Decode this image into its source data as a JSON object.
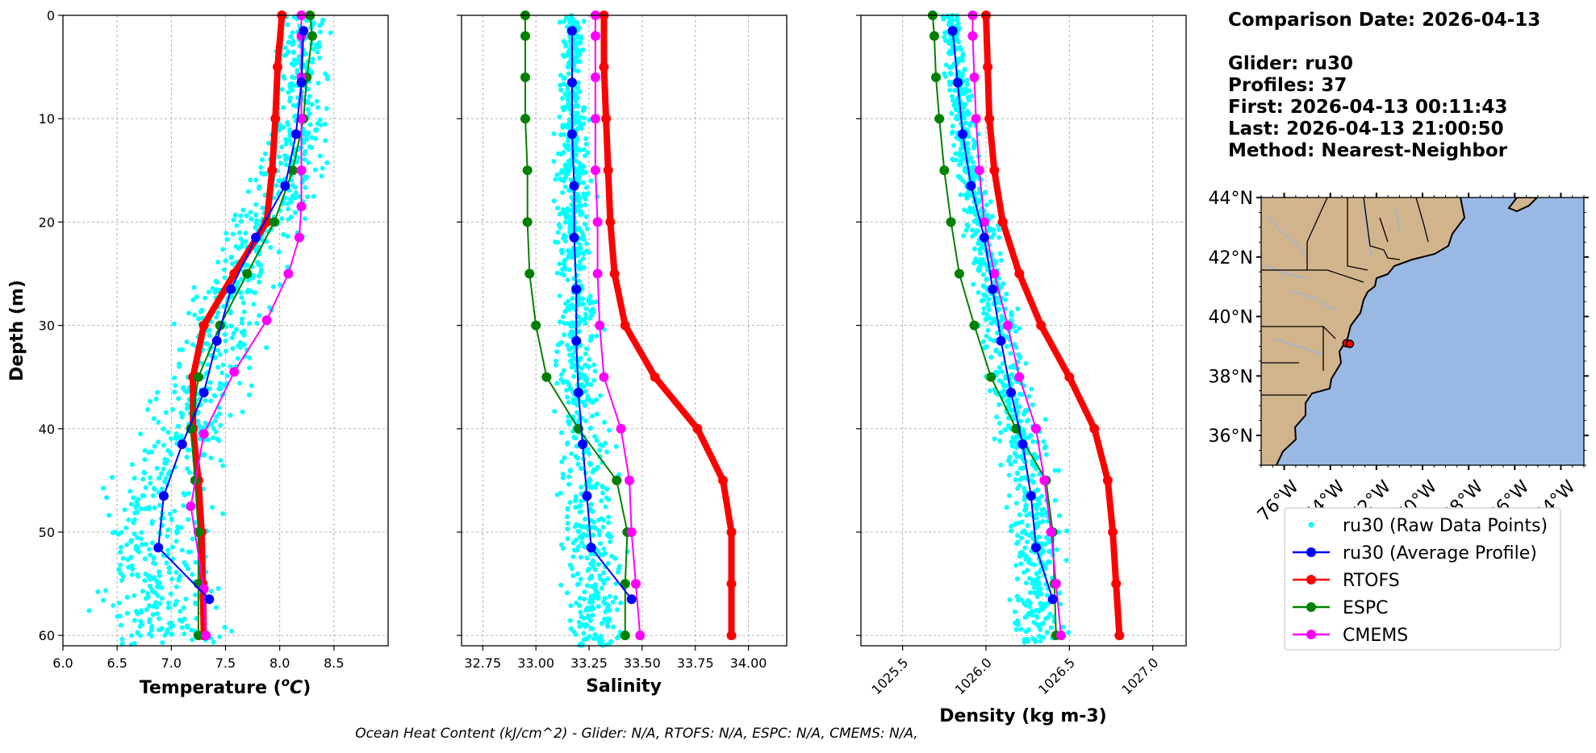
{
  "info": {
    "comparison_date": "Comparison Date: 2026-04-13",
    "glider": "Glider: ru30",
    "profiles": "Profiles: 37",
    "first": "First: 2026-04-13 00:11:43",
    "last": "Last: 2026-04-13 21:00:50",
    "method": "Method: Nearest-Neighbor"
  },
  "footer": "Ocean Heat Content (kJ/cm^2) - Glider: N/A,  RTOFS: N/A,  ESPC: N/A,  CMEMS: N/A,",
  "colors": {
    "raw": "#00ffff",
    "glider_avg": "#0000ff",
    "rtofs": "#ff0000",
    "espc": "#008000",
    "cmems": "#ff00ff",
    "land": "#d2b48c",
    "ocean": "#9ab8e4",
    "rivers": "#9bb3d4"
  },
  "chart_data": [
    {
      "type": "line",
      "xlabel": "Temperature (°C)",
      "ylabel": "Depth (m)",
      "xlim": [
        6.0,
        9.0
      ],
      "ylim": [
        61,
        0
      ],
      "xticks": [
        "6.0",
        "6.5",
        "7.0",
        "7.5",
        "8.0",
        "8.5"
      ],
      "yticks": [
        "0",
        "10",
        "20",
        "30",
        "40",
        "50",
        "60"
      ],
      "grid": true,
      "y_inverted": true,
      "depth": [
        1.5,
        6.5,
        11.5,
        16.5,
        21.5,
        26.5,
        31.5,
        36.5,
        41.5,
        46.5,
        51.5,
        56.5
      ],
      "series": [
        {
          "name": "ru30 (Average Profile)",
          "values": [
            8.22,
            8.2,
            8.15,
            8.05,
            7.78,
            7.55,
            7.42,
            7.3,
            7.1,
            6.93,
            6.88,
            7.35
          ]
        },
        {
          "name": "RTOFS",
          "depth": [
            0,
            5,
            10,
            15,
            20,
            25,
            30,
            35,
            40,
            45,
            50,
            55,
            60
          ],
          "values": [
            8.02,
            7.98,
            7.96,
            7.93,
            7.88,
            7.58,
            7.3,
            7.2,
            7.2,
            7.25,
            7.28,
            7.29,
            7.3
          ]
        },
        {
          "name": "ESPC",
          "depth": [
            0,
            2,
            6,
            10,
            15,
            20,
            25,
            30,
            35,
            40,
            45,
            50,
            55,
            60
          ],
          "values": [
            8.28,
            8.3,
            8.25,
            8.22,
            8.12,
            7.95,
            7.7,
            7.45,
            7.25,
            7.18,
            7.22,
            7.25,
            7.25,
            7.25
          ]
        },
        {
          "name": "CMEMS",
          "depth": [
            0,
            2,
            6,
            10,
            15,
            18.5,
            21.5,
            25,
            29.5,
            34.5,
            40.5,
            47.5,
            55.5,
            60
          ],
          "values": [
            8.2,
            8.2,
            8.2,
            8.2,
            8.2,
            8.2,
            8.18,
            8.08,
            7.88,
            7.58,
            7.3,
            7.18,
            7.3,
            7.32
          ]
        }
      ]
    },
    {
      "type": "line",
      "xlabel": "Salinity",
      "xlim": [
        32.65,
        34.18
      ],
      "ylim": [
        61,
        0
      ],
      "xticks": [
        "32.75",
        "33.00",
        "33.25",
        "33.50",
        "33.75",
        "34.00"
      ],
      "grid": true,
      "y_inverted": true,
      "depth": [
        1.5,
        6.5,
        11.5,
        16.5,
        21.5,
        26.5,
        31.5,
        36.5,
        41.5,
        46.5,
        51.5,
        56.5
      ],
      "series": [
        {
          "name": "ru30 (Average Profile)",
          "values": [
            33.17,
            33.17,
            33.17,
            33.18,
            33.18,
            33.19,
            33.19,
            33.2,
            33.22,
            33.24,
            33.26,
            33.45
          ]
        },
        {
          "name": "RTOFS",
          "depth": [
            0,
            5,
            10,
            15,
            20,
            25,
            30,
            35,
            40,
            45,
            50,
            55,
            60
          ],
          "values": [
            33.32,
            33.32,
            33.33,
            33.34,
            33.35,
            33.37,
            33.42,
            33.56,
            33.76,
            33.88,
            33.92,
            33.92,
            33.92
          ]
        },
        {
          "name": "ESPC",
          "depth": [
            0,
            2,
            6,
            10,
            15,
            20,
            25,
            30,
            35,
            40,
            45,
            50,
            55,
            60
          ],
          "values": [
            32.95,
            32.95,
            32.95,
            32.95,
            32.96,
            32.96,
            32.97,
            33.0,
            33.05,
            33.2,
            33.38,
            33.43,
            33.42,
            33.42
          ]
        },
        {
          "name": "CMEMS",
          "depth": [
            0,
            2,
            6,
            10,
            15,
            20,
            25,
            30,
            35,
            40,
            45,
            50,
            55,
            60
          ],
          "values": [
            33.28,
            33.28,
            33.28,
            33.28,
            33.28,
            33.29,
            33.29,
            33.3,
            33.32,
            33.4,
            33.44,
            33.45,
            33.47,
            33.49
          ]
        }
      ]
    },
    {
      "type": "line",
      "xlabel": "Density (kg m-3)",
      "xlim": [
        1025.25,
        1027.2
      ],
      "ylim": [
        61,
        0
      ],
      "xticks": [
        "1025.5",
        "1026.0",
        "1026.5",
        "1027.0"
      ],
      "grid": true,
      "y_inverted": true,
      "depth": [
        1.5,
        6.5,
        11.5,
        16.5,
        21.5,
        26.5,
        31.5,
        36.5,
        41.5,
        46.5,
        51.5,
        56.5
      ],
      "series": [
        {
          "name": "ru30 (Average Profile)",
          "values": [
            1025.8,
            1025.83,
            1025.86,
            1025.91,
            1025.99,
            1026.04,
            1026.09,
            1026.15,
            1026.22,
            1026.27,
            1026.3,
            1026.4
          ]
        },
        {
          "name": "RTOFS",
          "depth": [
            0,
            5,
            10,
            15,
            20,
            25,
            30,
            35,
            40,
            45,
            50,
            55,
            60
          ],
          "values": [
            1026.0,
            1026.01,
            1026.02,
            1026.05,
            1026.1,
            1026.2,
            1026.33,
            1026.5,
            1026.65,
            1026.73,
            1026.76,
            1026.78,
            1026.8
          ]
        },
        {
          "name": "ESPC",
          "depth": [
            0,
            2,
            6,
            10,
            15,
            20,
            25,
            30,
            35,
            40,
            45,
            50,
            55,
            60
          ],
          "values": [
            1025.68,
            1025.69,
            1025.7,
            1025.72,
            1025.75,
            1025.79,
            1025.84,
            1025.93,
            1026.03,
            1026.18,
            1026.36,
            1026.4,
            1026.41,
            1026.42
          ]
        },
        {
          "name": "CMEMS",
          "depth": [
            0,
            2,
            6,
            10,
            15,
            20,
            25,
            30,
            35,
            40,
            45,
            50,
            55,
            60
          ],
          "values": [
            1025.92,
            1025.92,
            1025.93,
            1025.94,
            1025.96,
            1025.99,
            1026.05,
            1026.13,
            1026.2,
            1026.3,
            1026.35,
            1026.39,
            1026.42,
            1026.45
          ]
        }
      ]
    },
    {
      "type": "map",
      "lon_ticks": [
        "76°W",
        "74°W",
        "72°W",
        "70°W",
        "68°W",
        "66°W",
        "64°W"
      ],
      "lat_ticks": [
        "44°N",
        "42°N",
        "40°N",
        "38°N",
        "36°N"
      ],
      "lon_range": [
        -77.0,
        -63.0
      ],
      "lat_range": [
        35.0,
        44.0
      ],
      "glider_points": [
        [
          -73.3,
          39.1
        ],
        [
          -73.15,
          39.08
        ]
      ]
    }
  ],
  "legend": {
    "entries": [
      "ru30 (Raw Data Points)",
      "ru30 (Average Profile)",
      "RTOFS",
      "ESPC",
      "CMEMS"
    ]
  }
}
